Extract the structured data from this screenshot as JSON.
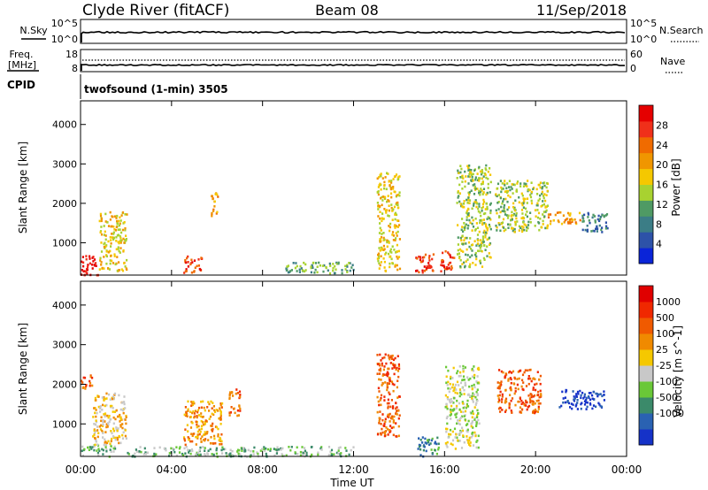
{
  "header": {
    "site": "Clyde River (fitACF)",
    "beam": "Beam 08",
    "date": "11/Sep/2018"
  },
  "status_panels": {
    "nsky_label": "N.Sky",
    "nsearch_label": "N.Search",
    "nsky_ticks": [
      "10^5",
      "10^0"
    ],
    "nsearch_ticks": [
      "10^5",
      "10^0"
    ],
    "freq_label": "Freq.",
    "freq_unit": "[MHz]",
    "freq_ticks": [
      "18",
      "8"
    ],
    "nave_label": "Nave",
    "nave_ticks": [
      "60",
      "0"
    ],
    "cpid_label": "CPID",
    "cpid_text": "twofsound (1-min) 3505"
  },
  "chart_data": [
    {
      "type": "heatmap",
      "quantity": "power",
      "xlabel": "Time UT",
      "ylabel": "Slant Range [km]",
      "xlim": [
        0,
        24
      ],
      "x_ticks": [
        "00:00",
        "04:00",
        "08:00",
        "12:00",
        "16:00",
        "20:00",
        "00:00"
      ],
      "ylim": [
        180,
        4600
      ],
      "y_ticks": [
        1000,
        2000,
        3000,
        4000
      ],
      "colorbar": {
        "label": "Power [dB]",
        "ticks": [
          "4",
          "8",
          "12",
          "16",
          "20",
          "24",
          "28"
        ],
        "colors": [
          "#0a24d8",
          "#2d52a8",
          "#3b7d86",
          "#4f9a64",
          "#a8d230",
          "#f5c800",
          "#f09600",
          "#f06b00",
          "#f0301a",
          "#e50000"
        ]
      },
      "features": [
        {
          "t0": 0.0,
          "t1": 0.8,
          "r0": 200,
          "r1": 750,
          "level": 9
        },
        {
          "t0": 0.8,
          "t1": 2.0,
          "r0": 300,
          "r1": 1800,
          "level": 5
        },
        {
          "t0": 4.5,
          "t1": 5.3,
          "r0": 250,
          "r1": 700,
          "level": 8
        },
        {
          "t0": 5.7,
          "t1": 6.0,
          "r0": 1500,
          "r1": 2300,
          "level": 6
        },
        {
          "t0": 9.0,
          "t1": 12.0,
          "r0": 250,
          "r1": 550,
          "level": 3
        },
        {
          "t0": 13.0,
          "t1": 14.0,
          "r0": 300,
          "r1": 2800,
          "level": 5
        },
        {
          "t0": 14.7,
          "t1": 15.6,
          "r0": 250,
          "r1": 750,
          "level": 8
        },
        {
          "t0": 15.8,
          "t1": 16.4,
          "r0": 300,
          "r1": 900,
          "level": 8
        },
        {
          "t0": 16.5,
          "t1": 18.0,
          "r0": 400,
          "r1": 3000,
          "level": 4
        },
        {
          "t0": 18.2,
          "t1": 20.5,
          "r0": 1300,
          "r1": 2600,
          "level": 4
        },
        {
          "t0": 20.5,
          "t1": 22.0,
          "r0": 1500,
          "r1": 1800,
          "level": 6
        },
        {
          "t0": 22.0,
          "t1": 23.2,
          "r0": 1300,
          "r1": 1800,
          "level": 2
        }
      ]
    },
    {
      "type": "heatmap",
      "quantity": "velocity",
      "xlabel": "Time UT",
      "ylabel": "Slant Range [km]",
      "xlim": [
        0,
        24
      ],
      "x_ticks": [
        "00:00",
        "04:00",
        "08:00",
        "12:00",
        "16:00",
        "20:00",
        "00:00"
      ],
      "ylim": [
        180,
        4600
      ],
      "y_ticks": [
        1000,
        2000,
        3000,
        4000
      ],
      "colorbar": {
        "label": "Velocity [m s^-1]",
        "ticks": [
          "1000",
          "500",
          "100",
          "25",
          "-25",
          "-100",
          "-500",
          "-1000"
        ],
        "colors": [
          "#1532c8",
          "#2a62b2",
          "#3b8a6a",
          "#6ac838",
          "#c8c8c8",
          "#f5c800",
          "#f08a00",
          "#f05a00",
          "#f02800",
          "#e00000"
        ]
      },
      "features": [
        {
          "t0": 0.0,
          "t1": 1.5,
          "r0": 200,
          "r1": 500,
          "level": 3
        },
        {
          "t0": 0.0,
          "t1": 0.5,
          "r0": 1900,
          "r1": 2300,
          "level": 7
        },
        {
          "t0": 0.5,
          "t1": 2.0,
          "r0": 500,
          "r1": 1800,
          "level": 5
        },
        {
          "t0": 2.0,
          "t1": 12.0,
          "r0": 200,
          "r1": 450,
          "level": 3
        },
        {
          "t0": 4.5,
          "t1": 6.2,
          "r0": 500,
          "r1": 1600,
          "level": 6
        },
        {
          "t0": 6.5,
          "t1": 7.0,
          "r0": 1200,
          "r1": 1900,
          "level": 7
        },
        {
          "t0": 13.0,
          "t1": 14.0,
          "r0": 700,
          "r1": 2800,
          "level": 7
        },
        {
          "t0": 14.8,
          "t1": 15.8,
          "r0": 200,
          "r1": 700,
          "level": 2
        },
        {
          "t0": 16.0,
          "t1": 17.5,
          "r0": 400,
          "r1": 2500,
          "level": 4
        },
        {
          "t0": 18.3,
          "t1": 20.2,
          "r0": 1300,
          "r1": 2400,
          "level": 7
        },
        {
          "t0": 21.0,
          "t1": 23.0,
          "r0": 1400,
          "r1": 1900,
          "level": 0
        }
      ]
    }
  ]
}
